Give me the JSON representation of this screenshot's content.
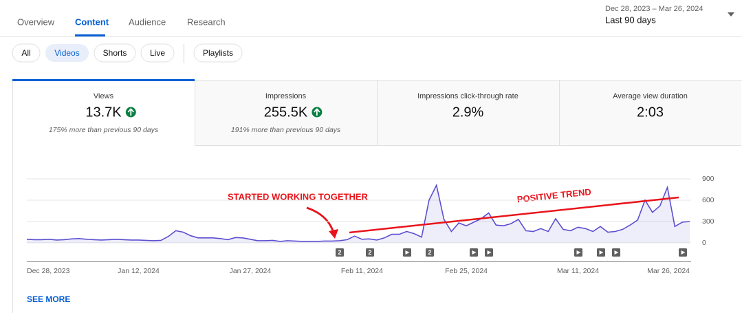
{
  "tabs": [
    "Overview",
    "Content",
    "Audience",
    "Research"
  ],
  "date_range": {
    "range": "Dec 28, 2023 – Mar 26, 2024",
    "period": "Last 90 days"
  },
  "filters": [
    "All",
    "Videos",
    "Shorts",
    "Live",
    "Playlists"
  ],
  "metrics": [
    {
      "label": "Views",
      "value": "13.7K",
      "comparison": "175% more than previous 90 days"
    },
    {
      "label": "Impressions",
      "value": "255.5K",
      "comparison": "191% more than previous 90 days"
    },
    {
      "label": "Impressions click-through rate",
      "value": "2.9%"
    },
    {
      "label": "Average view duration",
      "value": "2:03"
    }
  ],
  "chart_data": {
    "type": "line",
    "categories": [
      "Dec 28, 2023",
      null,
      null,
      null,
      null,
      null,
      null,
      null,
      null,
      null,
      null,
      null,
      null,
      null,
      null,
      "Jan 12, 2024",
      null,
      null,
      null,
      null,
      null,
      null,
      null,
      null,
      null,
      null,
      null,
      null,
      null,
      null,
      "Jan 27, 2024",
      null,
      null,
      null,
      null,
      null,
      null,
      null,
      null,
      null,
      null,
      null,
      null,
      null,
      null,
      "Feb 11, 2024",
      null,
      null,
      null,
      null,
      null,
      null,
      null,
      null,
      null,
      null,
      null,
      null,
      null,
      "Feb 25, 2024",
      null,
      null,
      null,
      null,
      null,
      null,
      null,
      null,
      null,
      null,
      null,
      null,
      null,
      null,
      "Mar 11, 2024",
      null,
      null,
      null,
      null,
      null,
      null,
      null,
      null,
      null,
      null,
      null,
      null,
      null,
      null,
      "Mar 26, 2024"
    ],
    "values": [
      50,
      45,
      45,
      50,
      40,
      45,
      55,
      60,
      50,
      45,
      40,
      45,
      50,
      45,
      40,
      40,
      35,
      30,
      35,
      90,
      170,
      150,
      100,
      70,
      70,
      70,
      60,
      45,
      75,
      70,
      50,
      30,
      30,
      35,
      20,
      30,
      25,
      20,
      20,
      20,
      25,
      25,
      30,
      45,
      95,
      50,
      55,
      40,
      70,
      120,
      120,
      160,
      130,
      80,
      600,
      810,
      330,
      160,
      280,
      240,
      290,
      340,
      420,
      250,
      240,
      270,
      330,
      170,
      160,
      200,
      160,
      340,
      190,
      170,
      220,
      200,
      160,
      230,
      150,
      160,
      190,
      250,
      320,
      600,
      430,
      520,
      780,
      230,
      290,
      300
    ],
    "color": "#5b4fcf",
    "ylim": [
      0,
      900
    ],
    "yticks": [
      0,
      300,
      600,
      900
    ],
    "grid": true
  },
  "publish_markers": [
    "2",
    "2",
    "2"
  ],
  "annotations": [
    "STARTED WORKING TOGETHER",
    "POSITIVE TREND"
  ],
  "see_more": "SEE MORE"
}
